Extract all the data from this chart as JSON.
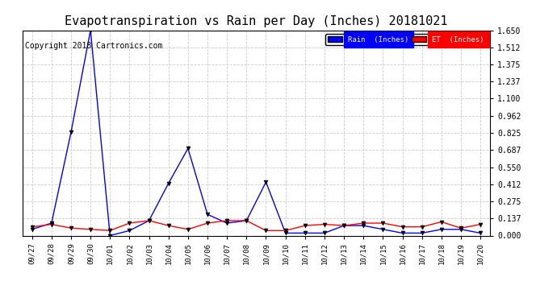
{
  "title": "Evapotranspiration vs Rain per Day (Inches) 20181021",
  "copyright": "Copyright 2018 Cartronics.com",
  "legend_rain": "Rain  (Inches)",
  "legend_et": "ET  (Inches)",
  "x_labels": [
    "09/27",
    "09/28",
    "09/29",
    "09/30",
    "10/01",
    "10/02",
    "10/03",
    "10/04",
    "10/05",
    "10/06",
    "10/07",
    "10/08",
    "10/09",
    "10/10",
    "10/11",
    "10/12",
    "10/13",
    "10/14",
    "10/15",
    "10/16",
    "10/17",
    "10/18",
    "10/19",
    "10/20"
  ],
  "rain_values": [
    0.05,
    0.1,
    0.83,
    1.65,
    0.0,
    0.04,
    0.12,
    0.42,
    0.7,
    0.17,
    0.1,
    0.12,
    0.43,
    0.02,
    0.02,
    0.02,
    0.08,
    0.08,
    0.05,
    0.02,
    0.02,
    0.05,
    0.05,
    0.02
  ],
  "et_values": [
    0.07,
    0.09,
    0.06,
    0.05,
    0.04,
    0.1,
    0.12,
    0.08,
    0.05,
    0.1,
    0.12,
    0.12,
    0.04,
    0.04,
    0.08,
    0.09,
    0.08,
    0.1,
    0.1,
    0.07,
    0.07,
    0.11,
    0.06,
    0.09
  ],
  "rain_color": "#0000ff",
  "et_color": "#ff0000",
  "ylim": [
    0.0,
    1.65
  ],
  "yticks": [
    0.0,
    0.137,
    0.275,
    0.412,
    0.55,
    0.687,
    0.825,
    0.962,
    1.1,
    1.237,
    1.375,
    1.512,
    1.65
  ],
  "bg_color": "#ffffff",
  "grid_color": "#cccccc",
  "title_fontsize": 11,
  "copyright_fontsize": 7,
  "legend_rain_bg": "#0000ff",
  "legend_et_bg": "#ff0000"
}
